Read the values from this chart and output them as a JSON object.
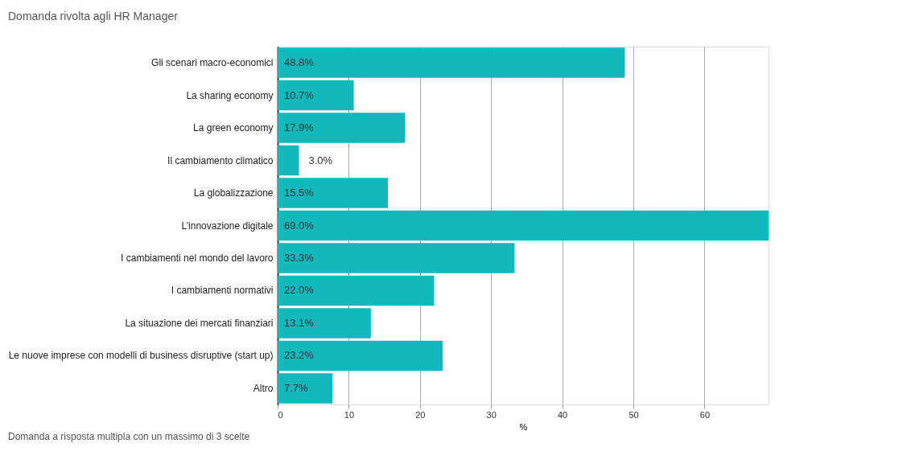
{
  "chart_data": {
    "type": "bar",
    "orientation": "horizontal",
    "title": "Domanda rivolta agli HR Manager",
    "xlabel": "%",
    "categories": [
      "Gli scenari macro-economici",
      "La sharing economy",
      "La green economy",
      "Il cambiamento climatico",
      "La globalizzazione",
      "L’innovazione digitale",
      "I cambiamenti nel mondo del lavoro",
      "I cambiamenti normativi",
      "La situazione dei mercati finanziari",
      "Le nuove imprese con modelli di business disruptive (start up)",
      "Altro"
    ],
    "values": [
      48.8,
      10.7,
      17.9,
      3.0,
      15.5,
      69.0,
      33.3,
      22.0,
      13.1,
      23.2,
      7.7
    ],
    "value_labels": [
      "48.8%",
      "10.7%",
      "17.9%",
      "3.0%",
      "15.5%",
      "69.0%",
      "33.3%",
      "22.0%",
      "13.1%",
      "23.2%",
      "7.7%"
    ],
    "color": "#12b9bc",
    "xlim": [
      0,
      69
    ],
    "xticks": [
      0,
      10,
      20,
      30,
      40,
      50,
      60
    ],
    "grid": "x",
    "annotations": [
      "Domanda a risposta multipla con un massimo di 3 scelte"
    ]
  }
}
